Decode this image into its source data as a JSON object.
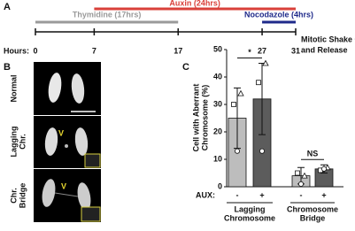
{
  "panel_a": {
    "letter": "A",
    "hours_label": "Hours:",
    "timeline": {
      "xlim": [
        0,
        31
      ],
      "ticks": [
        0,
        7,
        17,
        27,
        31
      ],
      "bars": [
        {
          "label": "Auxin (24hrs)",
          "start": 7,
          "end": 31,
          "color": "#d9403a"
        },
        {
          "label": "Thymidine (17hrs)",
          "start": 0,
          "end": 17,
          "color": "#9a9a9a"
        },
        {
          "label": "Nocodazole (4hrs)",
          "start": 27,
          "end": 31,
          "color": "#1f2a8a"
        }
      ]
    },
    "end_label": [
      "Mitotic Shake Off",
      "and Release"
    ]
  },
  "panel_b": {
    "letter": "B",
    "rows": [
      [
        "Normal"
      ],
      [
        "Lagging",
        "Chr."
      ],
      [
        "Chr.",
        "Bridge"
      ]
    ],
    "arrow": "V"
  },
  "chart_data": {
    "type": "bar",
    "letter": "C",
    "ylabel": [
      "Cell with Aberrant",
      "Chromosome (%)"
    ],
    "ylim": [
      0,
      50
    ],
    "yticks": [
      0,
      10,
      20,
      30,
      40,
      50
    ],
    "x_prefix": "AUX:",
    "categories": [
      "-",
      "+",
      "-",
      "+"
    ],
    "values": [
      25,
      32,
      4,
      6.5
    ],
    "errors": [
      11,
      13,
      3,
      1.5
    ],
    "colors": [
      "#bdbdbd",
      "#5c5c5c",
      "#bdbdbd",
      "#5c5c5c"
    ],
    "point_markers": [
      "square",
      "triangle",
      "circle"
    ],
    "points": [
      [
        30,
        34,
        13
      ],
      [
        38,
        45,
        13
      ],
      [
        5,
        4,
        1
      ],
      [
        6,
        7,
        6.5
      ]
    ],
    "groups": [
      [
        "Lagging",
        "Chromosome"
      ],
      [
        "Chromosome",
        "Bridge"
      ]
    ],
    "significance": [
      "*",
      "NS"
    ]
  }
}
